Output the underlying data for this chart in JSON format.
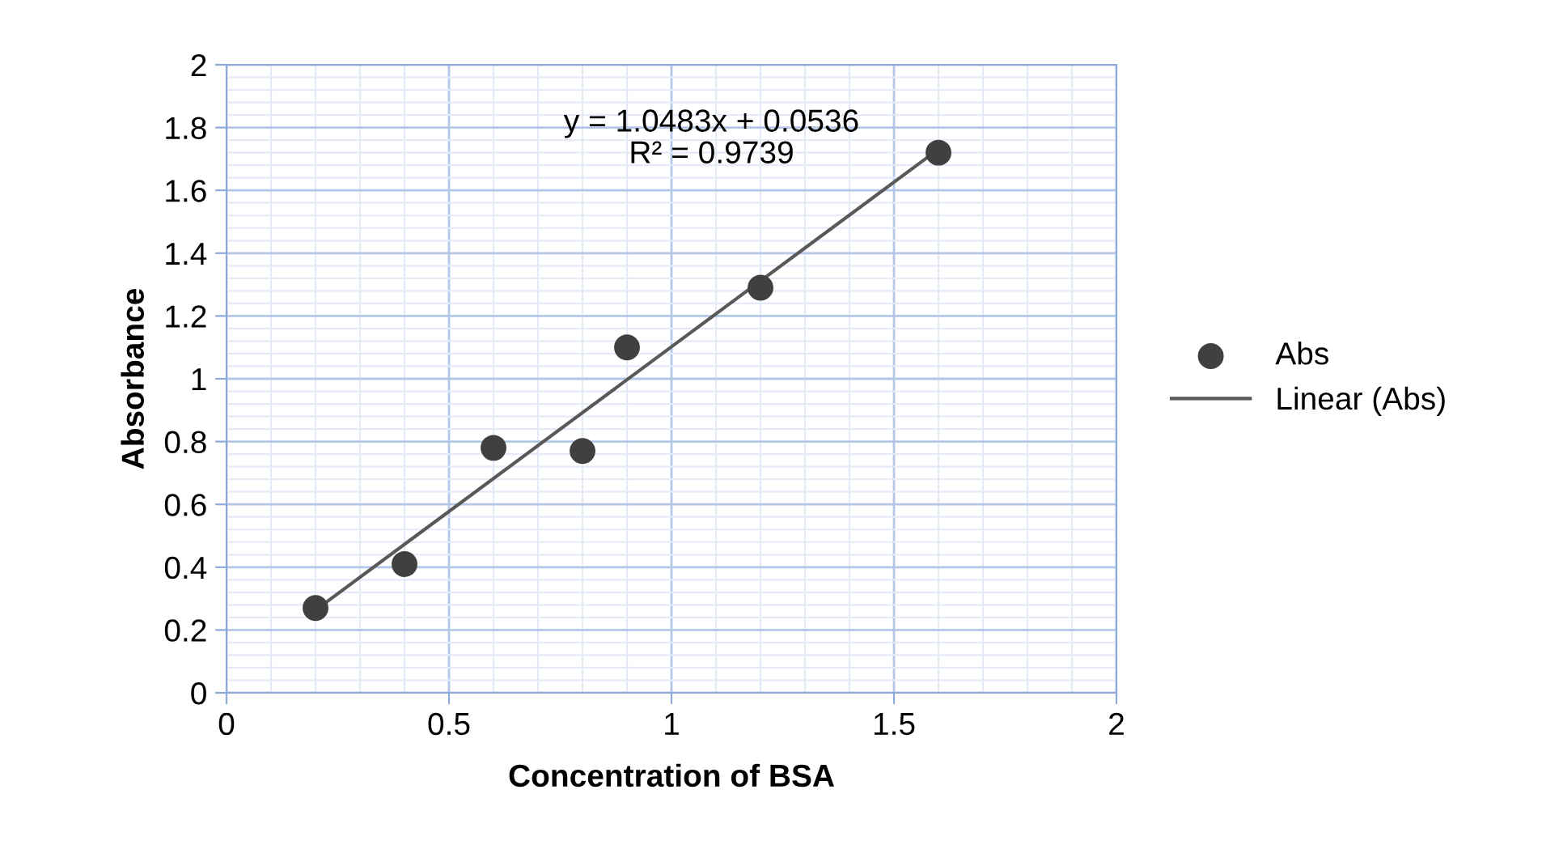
{
  "chart_data": {
    "type": "scatter",
    "xlabel": "Concentration of BSA",
    "ylabel": "Absorbance",
    "annotations": [
      "y = 1.0483x + 0.0536\nR² = 0.9739"
    ],
    "series": [
      {
        "name": "Abs",
        "color": "#404040",
        "marker": "circle",
        "x": [
          0.2,
          0.4,
          0.6,
          0.8,
          0.9,
          1.2,
          1.6
        ],
        "values": [
          0.27,
          0.41,
          0.78,
          0.77,
          1.1,
          1.29,
          1.72
        ]
      },
      {
        "name": "Linear (Abs)",
        "type": "line",
        "color": "#595959",
        "x": [
          0.2,
          1.6
        ],
        "values": [
          0.263,
          1.731
        ]
      }
    ],
    "xlim": [
      0,
      2
    ],
    "xticks": [
      0,
      0.5,
      1,
      1.5,
      2
    ],
    "ylim": [
      0,
      2
    ],
    "yticks": [
      0,
      0.2,
      0.4,
      0.6,
      0.8,
      1,
      1.2,
      1.4,
      1.6,
      1.8,
      2
    ],
    "grid": true,
    "legend": "right"
  }
}
